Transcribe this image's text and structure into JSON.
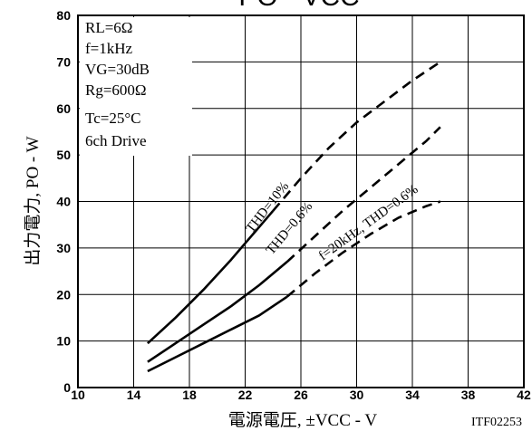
{
  "chart_data": {
    "type": "line",
    "title": "PO - VCC",
    "xlabel": "電源電圧, ±VCC - V",
    "ylabel": "出力電力, PO - W",
    "xlim": [
      10,
      42
    ],
    "ylim": [
      0,
      80
    ],
    "x_ticks": [
      "10",
      "14",
      "18",
      "22",
      "26",
      "30",
      "34",
      "38",
      "42"
    ],
    "y_ticks": [
      "0",
      "10",
      "20",
      "30",
      "40",
      "50",
      "60",
      "70",
      "80"
    ],
    "grid": true,
    "figure_code": "ITF02253",
    "conditions": [
      "RL=6Ω",
      "f=1kHz",
      "VG=30dB",
      "Rg=600Ω",
      "Tc=25°C",
      "6ch Drive"
    ],
    "series": [
      {
        "name": "THD=10%",
        "solid": [
          [
            15,
            9.5
          ],
          [
            17,
            15
          ],
          [
            19,
            21
          ],
          [
            21,
            27.5
          ],
          [
            22,
            31
          ],
          [
            23,
            34.5
          ],
          [
            24,
            38
          ]
        ],
        "dashed": [
          [
            24,
            38
          ],
          [
            26,
            45
          ],
          [
            28,
            51.5
          ],
          [
            30,
            57
          ],
          [
            32,
            61.5
          ],
          [
            34,
            66
          ],
          [
            36,
            70
          ]
        ]
      },
      {
        "name": "THD=0.6%",
        "solid": [
          [
            15,
            5.5
          ],
          [
            17,
            9.5
          ],
          [
            19,
            13.5
          ],
          [
            21,
            17.5
          ],
          [
            23,
            22
          ],
          [
            24,
            24.5
          ],
          [
            25,
            27
          ]
        ],
        "dashed": [
          [
            25,
            27
          ],
          [
            27,
            32.5
          ],
          [
            29,
            38
          ],
          [
            31,
            43
          ],
          [
            33,
            48
          ],
          [
            35,
            53
          ],
          [
            36,
            56
          ]
        ]
      },
      {
        "name": "f=20kHz, THD=0.6%",
        "solid": [
          [
            15,
            3.5
          ],
          [
            17,
            6.5
          ],
          [
            19,
            9.5
          ],
          [
            21,
            12.5
          ],
          [
            23,
            15.5
          ],
          [
            25,
            19.5
          ]
        ],
        "dashed": [
          [
            25,
            19.5
          ],
          [
            27,
            24.5
          ],
          [
            29,
            29
          ],
          [
            31,
            33
          ],
          [
            33,
            36.5
          ],
          [
            35,
            39
          ],
          [
            36,
            40
          ]
        ]
      }
    ]
  }
}
